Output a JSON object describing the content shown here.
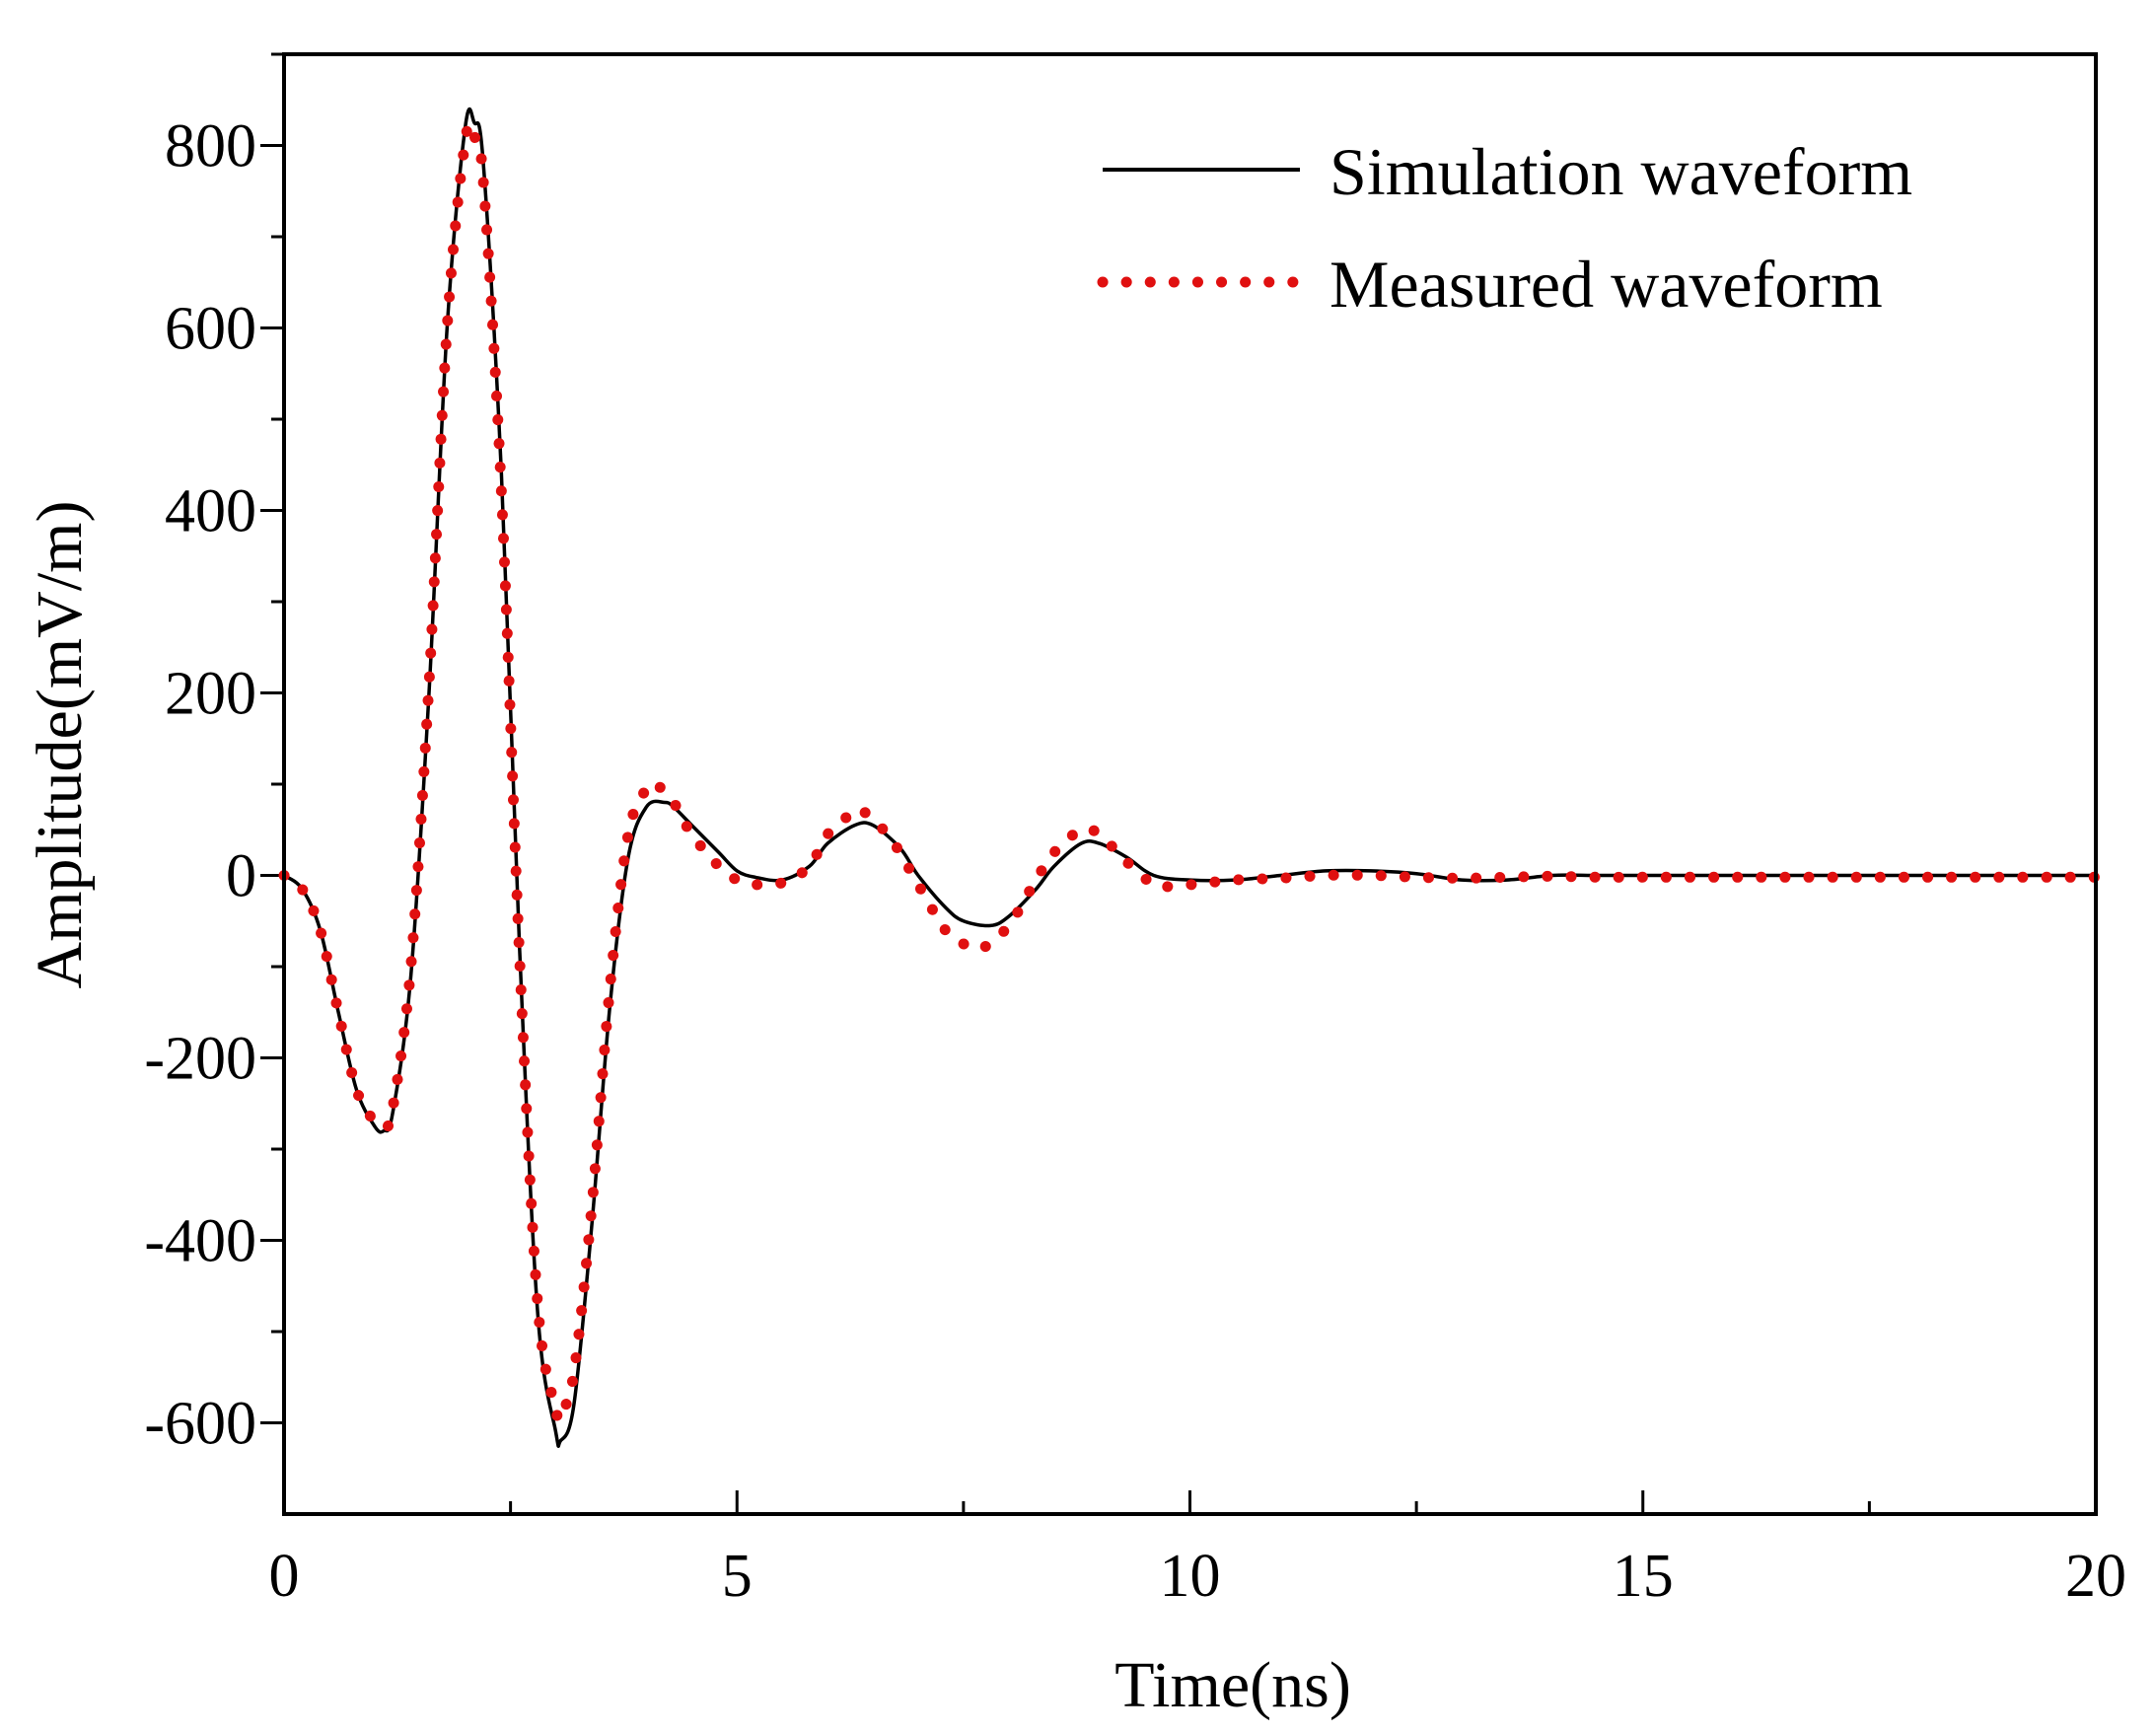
{
  "chart_data": {
    "type": "line",
    "title": "",
    "xlabel": "Time(ns)",
    "ylabel": "Amplitude(mV/m)",
    "xlim": [
      0,
      20
    ],
    "ylim": [
      -700,
      900
    ],
    "x_ticks": [
      0,
      5,
      10,
      15,
      20
    ],
    "x_tick_labels": [
      "0",
      "5",
      "10",
      "15",
      "20"
    ],
    "x_minor_step": 2.5,
    "y_ticks": [
      -600,
      -400,
      -200,
      0,
      200,
      400,
      600,
      800
    ],
    "y_tick_labels": [
      "-600",
      "-400",
      "-200",
      "0",
      "200",
      "400",
      "600",
      "800"
    ],
    "y_minor_step": 100,
    "grid": false,
    "legend_position": "top-right",
    "series": [
      {
        "name": "Simulation waveform",
        "style": "solid",
        "color": "#000000",
        "x": [
          0,
          0.2,
          0.4,
          0.6,
          0.8,
          1.0,
          1.1,
          1.2,
          1.4,
          1.6,
          1.8,
          2.0,
          2.1,
          2.2,
          2.4,
          2.6,
          2.8,
          3.0,
          3.05,
          3.2,
          3.4,
          3.6,
          3.8,
          4.0,
          4.2,
          4.3,
          4.5,
          4.8,
          5.0,
          5.2,
          5.5,
          5.8,
          6.0,
          6.3,
          6.5,
          6.8,
          7.0,
          7.3,
          7.5,
          7.8,
          8.0,
          8.3,
          8.5,
          8.8,
          9.0,
          9.3,
          9.6,
          10.0,
          10.5,
          11.0,
          11.5,
          12.0,
          12.5,
          13.0,
          13.5,
          14.0,
          14.5,
          15.0,
          16.0,
          17.0,
          18.0,
          19.0,
          20.0
        ],
        "y": [
          0,
          -15,
          -60,
          -150,
          -235,
          -275,
          -280,
          -260,
          -110,
          200,
          600,
          820,
          825,
          780,
          440,
          -80,
          -480,
          -610,
          -620,
          -580,
          -380,
          -140,
          20,
          75,
          80,
          75,
          55,
          25,
          5,
          -2,
          -5,
          10,
          35,
          55,
          55,
          30,
          0,
          -35,
          -50,
          -55,
          -45,
          -15,
          10,
          35,
          35,
          20,
          0,
          -5,
          -5,
          0,
          5,
          5,
          2,
          -5,
          -5,
          0,
          0,
          0,
          0,
          0,
          0,
          0,
          0
        ]
      },
      {
        "name": "Measured waveform",
        "style": "dotted",
        "color": "#e01010",
        "x": [
          0,
          0.2,
          0.4,
          0.6,
          0.8,
          1.0,
          1.1,
          1.2,
          1.4,
          1.6,
          1.8,
          2.0,
          2.1,
          2.2,
          2.4,
          2.6,
          2.8,
          3.0,
          3.05,
          3.2,
          3.4,
          3.6,
          3.8,
          4.0,
          4.1,
          4.3,
          4.5,
          4.8,
          5.0,
          5.2,
          5.5,
          5.8,
          6.0,
          6.3,
          6.4,
          6.7,
          7.0,
          7.3,
          7.5,
          7.7,
          8.0,
          8.3,
          8.5,
          8.8,
          9.0,
          9.3,
          9.6,
          9.8,
          10.2,
          10.5,
          11.0,
          11.5,
          12.0,
          12.5,
          13.0,
          13.5,
          14.0,
          14.5,
          15.0,
          16.0,
          17.0,
          18.0,
          19.0,
          20.0
        ],
        "y": [
          0,
          -15,
          -60,
          -150,
          -235,
          -270,
          -275,
          -255,
          -100,
          210,
          600,
          805,
          810,
          760,
          420,
          -90,
          -470,
          -585,
          -590,
          -545,
          -360,
          -120,
          45,
          95,
          100,
          80,
          45,
          10,
          -5,
          -10,
          -8,
          10,
          45,
          70,
          70,
          40,
          -10,
          -60,
          -75,
          -80,
          -55,
          -5,
          25,
          50,
          45,
          15,
          -10,
          -12,
          -8,
          -5,
          -3,
          0,
          0,
          -2,
          -3,
          -2,
          -1,
          -2,
          -2,
          -2,
          -2,
          -2,
          -2,
          -2
        ]
      }
    ]
  }
}
